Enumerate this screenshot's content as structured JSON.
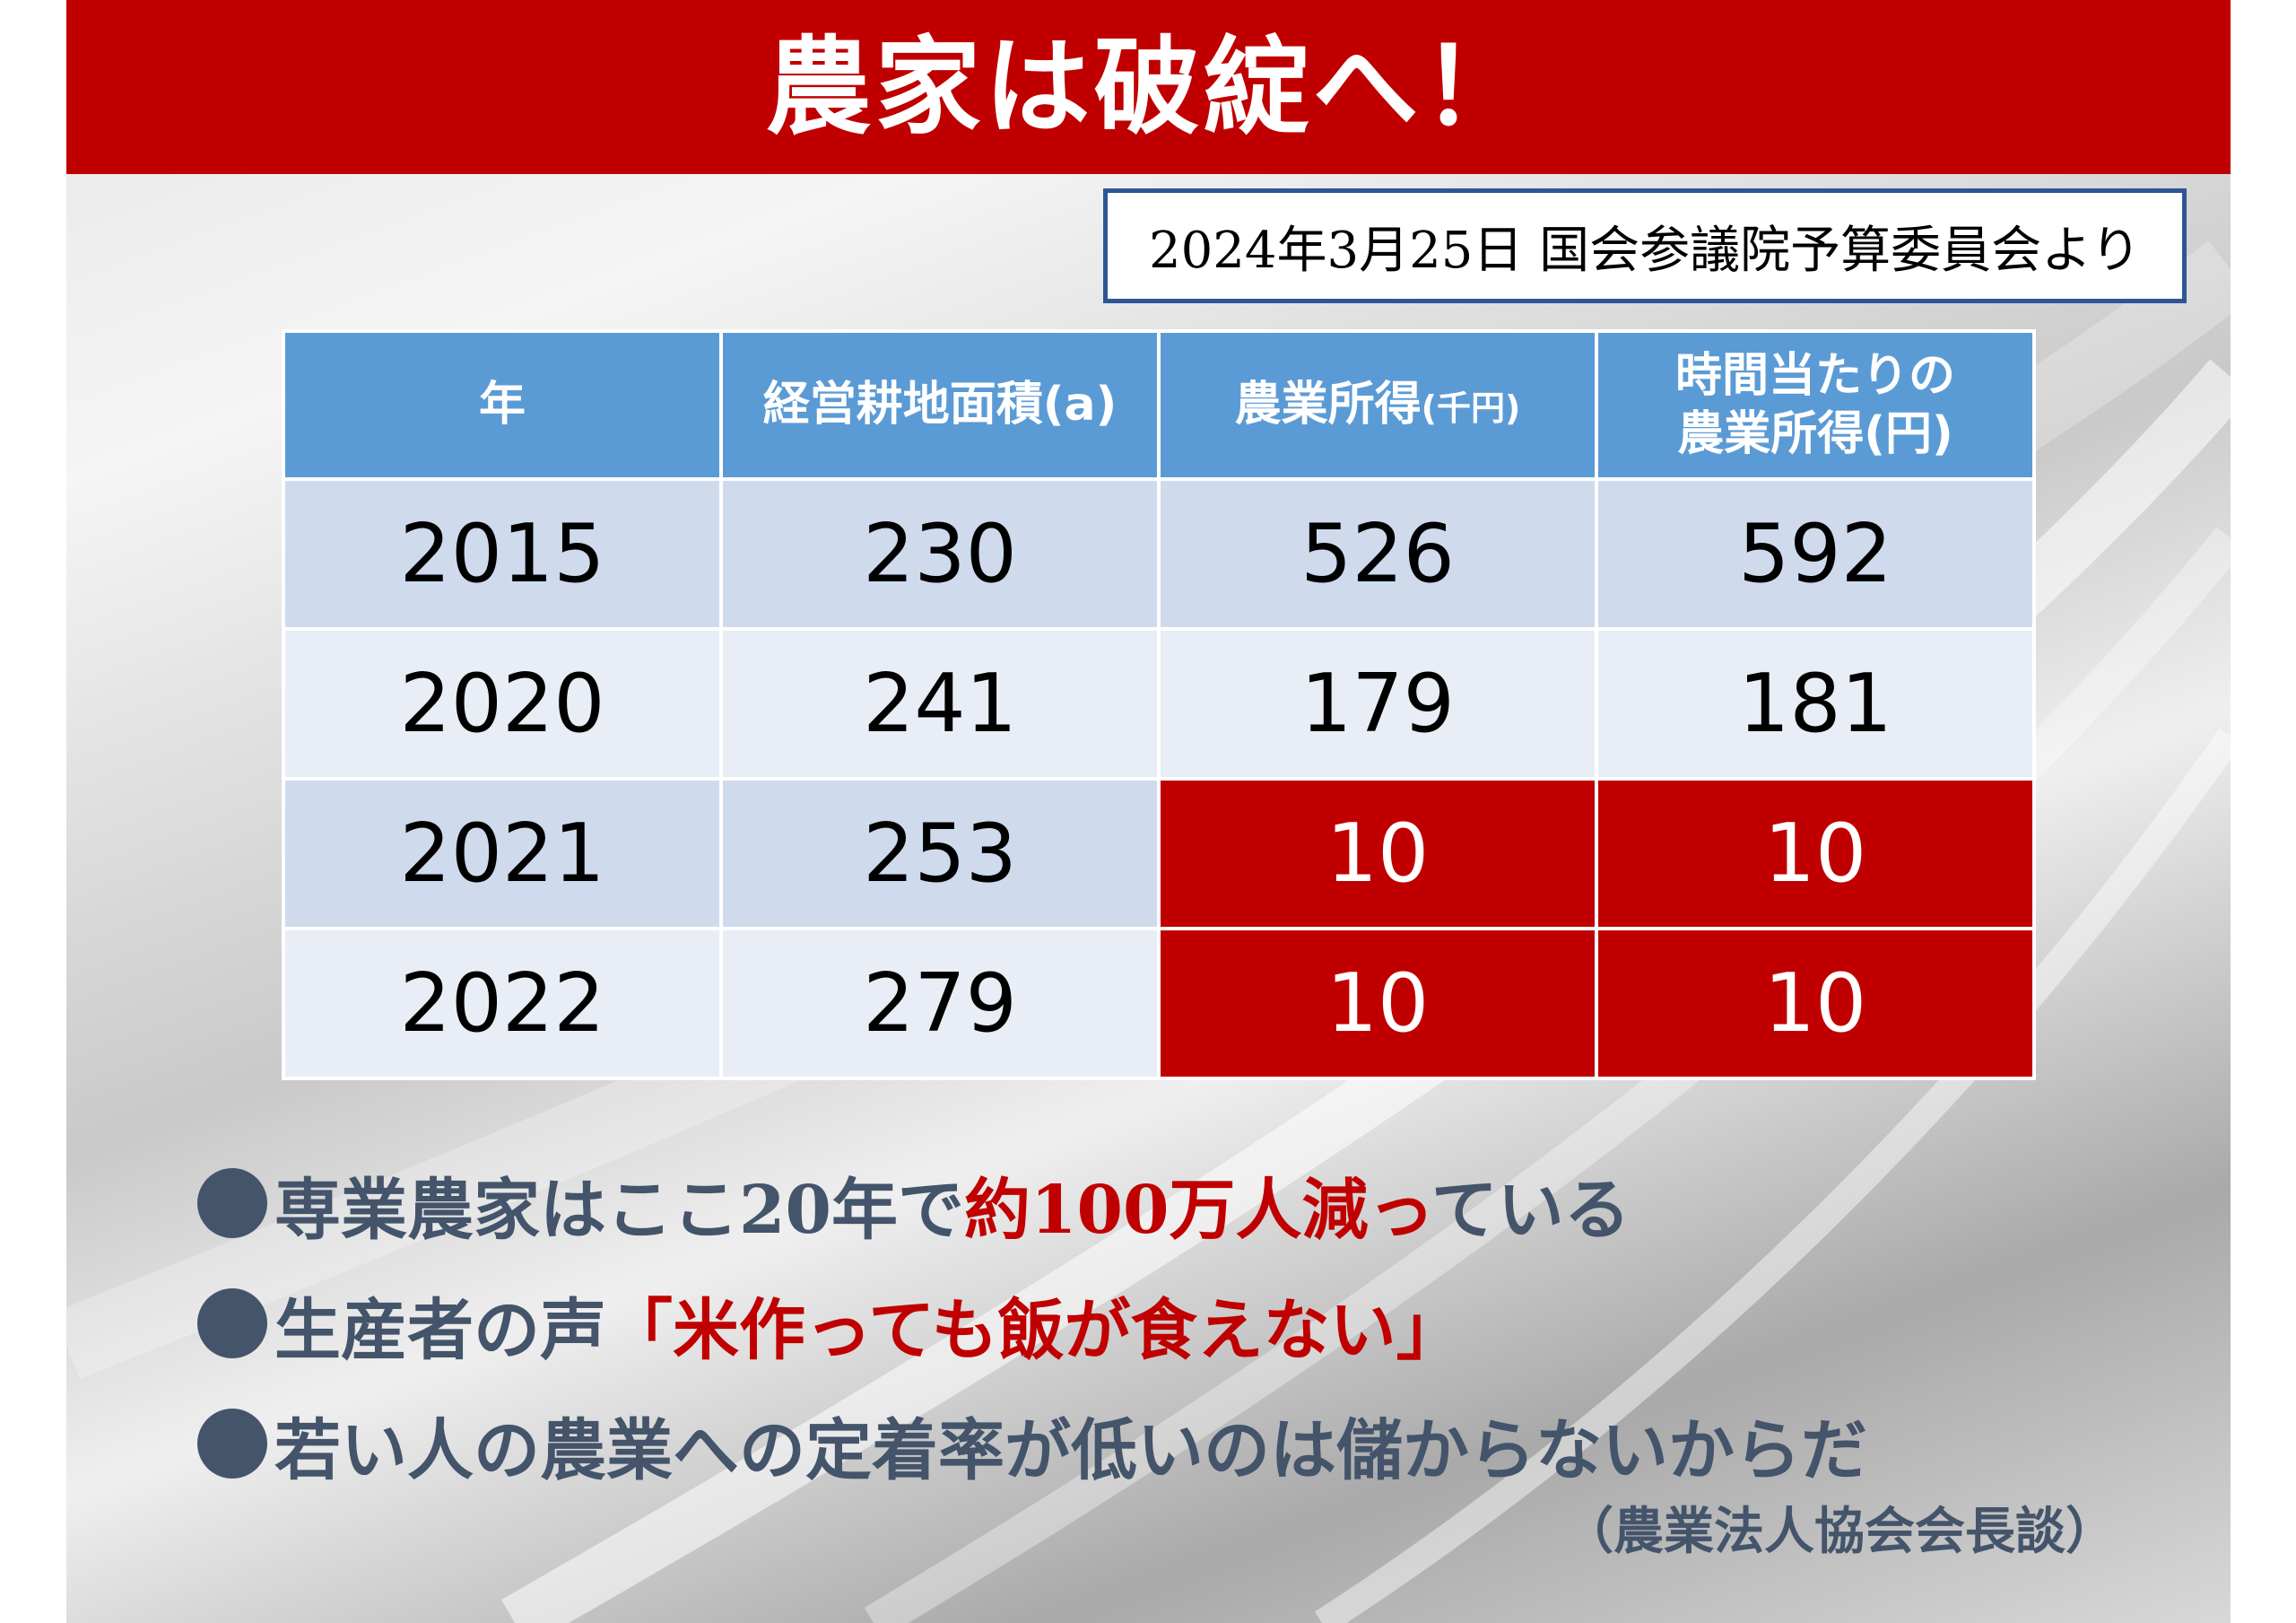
{
  "title": "農家は破綻へ！",
  "source_note": "2024年3月25日 国会参議院予算委員会より",
  "table": {
    "headers": {
      "year": "年",
      "area": "経営耕地面積(a)",
      "income_main": "農業所得",
      "income_unit": "(千円)",
      "hourly_line1": "時間当たりの",
      "hourly_line2": "農業所得(円)"
    },
    "rows": [
      {
        "year": "2015",
        "area": "230",
        "income": "526",
        "hourly": "592"
      },
      {
        "year": "2020",
        "area": "241",
        "income": "179",
        "hourly": "181"
      },
      {
        "year": "2021",
        "area": "253",
        "income": "10",
        "hourly": "10"
      },
      {
        "year": "2022",
        "area": "279",
        "income": "10",
        "hourly": "10"
      }
    ]
  },
  "bullets": {
    "b1_prefix": "専業農家はここ20年で",
    "b1_highlight": "約100万人減っ",
    "b1_suffix": "ている",
    "b2_prefix": "生産者の声",
    "b2_highlight": "「米作っても飯が食えない」",
    "b3_text": "若い人の農業への定着率が低いのは儲からないからだ",
    "attribution": "（農業法人協会会長談）"
  },
  "colors": {
    "title_bar": "#c00000",
    "header_blue": "#5b9bd5",
    "row_light": "#e8edf6",
    "row_mid": "#cfdaed",
    "alert_red": "#c00000",
    "bullet_text": "#44546a",
    "source_border": "#2f5597"
  }
}
